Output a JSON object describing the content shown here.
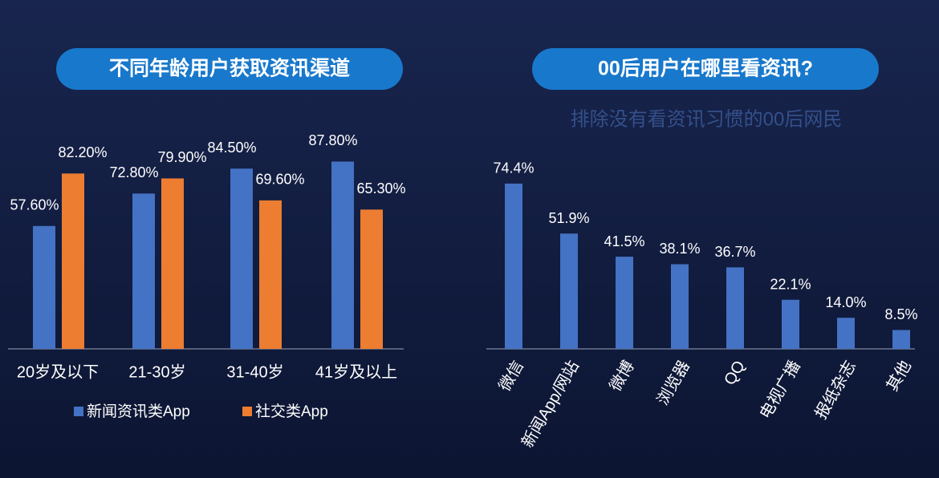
{
  "chart_data": [
    {
      "type": "bar",
      "title": "不同年龄用户获取资讯渠道",
      "categories": [
        "20岁及以下",
        "21-30岁",
        "31-40岁",
        "41岁及以上"
      ],
      "series": [
        {
          "name": "新闻资讯类App",
          "color": "#4472c4",
          "values": [
            57.6,
            72.8,
            84.5,
            87.8
          ],
          "value_labels": [
            "57.60%",
            "72.80%",
            "84.50%",
            "87.80%"
          ]
        },
        {
          "name": "社交类App",
          "color": "#ed7d31",
          "values": [
            82.2,
            79.9,
            69.6,
            65.3
          ],
          "value_labels": [
            "82.20%",
            "79.90%",
            "69.60%",
            "65.30%"
          ]
        }
      ]
    },
    {
      "type": "bar",
      "title": "00后用户在哪里看资讯?",
      "subtitle": "排除没有看资讯习惯的00后网民",
      "categories": [
        "微信",
        "新闻App/网站",
        "微博",
        "浏览器",
        "QQ",
        "电视广播",
        "报纸杂志",
        "其他"
      ],
      "values": [
        74.4,
        51.9,
        41.5,
        38.1,
        36.7,
        22.1,
        14.0,
        8.5
      ],
      "value_labels": [
        "74.4%",
        "51.9%",
        "41.5%",
        "38.1%",
        "36.7%",
        "22.1%",
        "14.0%",
        "8.5%"
      ],
      "color": "#4472c4"
    }
  ]
}
